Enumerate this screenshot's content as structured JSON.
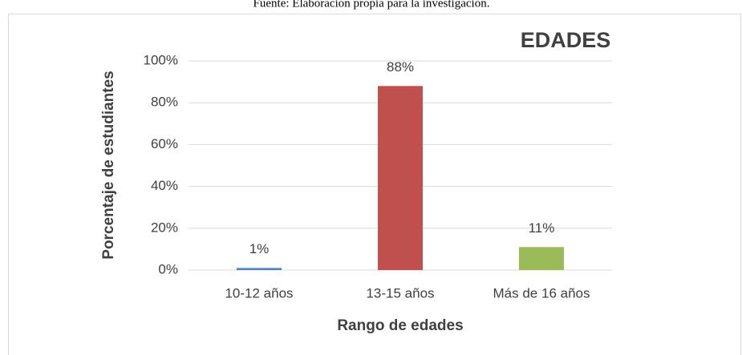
{
  "chart_data": {
    "type": "bar",
    "source": "Fuente: Elaboración propia para la investigación.",
    "title": "EDADES",
    "y_label": "Porcentaje de estudiantes",
    "x_label": "Rango de edades",
    "categories": [
      "10-12 años",
      "13-15 años",
      "Más de 16 años"
    ],
    "values": [
      1,
      88,
      11
    ],
    "value_labels": [
      "1%",
      "88%",
      "11%"
    ],
    "colors": [
      "#4f81bd",
      "#c0504d",
      "#9bbb59"
    ],
    "ylim": [
      0,
      100
    ],
    "yticks": [
      {
        "value": 0,
        "label": "0%"
      },
      {
        "value": 20,
        "label": "20%"
      },
      {
        "value": 40,
        "label": "40%"
      },
      {
        "value": 60,
        "label": "60%"
      },
      {
        "value": 80,
        "label": "80%"
      },
      {
        "value": 100,
        "label": "100%"
      }
    ],
    "grid": true
  }
}
